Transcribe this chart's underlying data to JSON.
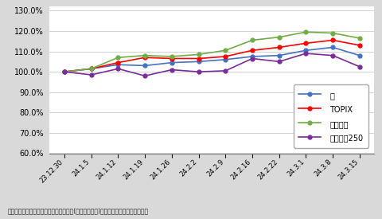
{
  "x_labels": [
    "23.12.30",
    "24.1.5",
    "24.1.12",
    "24.1.19",
    "24.1.26",
    "24.2.2",
    "24.2.9",
    "24.2.16",
    "24.2.22",
    "24.3.1",
    "24.3.8",
    "24.3.15"
  ],
  "series_order": [
    "私",
    "TOPIX",
    "日経平均",
    "グロース250"
  ],
  "series": {
    "私": [
      100.0,
      101.5,
      103.5,
      103.0,
      104.5,
      105.0,
      106.0,
      107.5,
      108.0,
      110.5,
      112.0,
      108.0
    ],
    "TOPIX": [
      100.0,
      101.5,
      104.5,
      107.0,
      106.5,
      106.5,
      107.5,
      110.5,
      112.0,
      114.0,
      115.5,
      113.0
    ],
    "日経平均": [
      100.0,
      101.5,
      107.0,
      108.0,
      107.5,
      108.5,
      110.5,
      115.5,
      117.0,
      119.5,
      119.0,
      116.5
    ],
    "グロース250": [
      100.0,
      98.5,
      101.5,
      98.0,
      101.0,
      100.0,
      100.5,
      106.5,
      105.0,
      109.0,
      108.0,
      102.5
    ]
  },
  "colors": {
    "私": "#4472C4",
    "TOPIX": "#FF0000",
    "日経平均": "#70AD47",
    "グロース250": "#7B2C9B"
  },
  "ylim": [
    60.0,
    132.0
  ],
  "yticks": [
    60.0,
    70.0,
    80.0,
    90.0,
    100.0,
    110.0,
    120.0,
    130.0
  ],
  "footnote": "追加資金は損益率には反映させておらず(配当金は反映)、保有株の損益率を表示中。",
  "bg_color": "#D9D9D9",
  "plot_bg_color": "#FFFFFF",
  "marker_size": 3.5,
  "line_width": 1.2,
  "grid_color": "#C0C0C0",
  "spine_color": "#808080"
}
